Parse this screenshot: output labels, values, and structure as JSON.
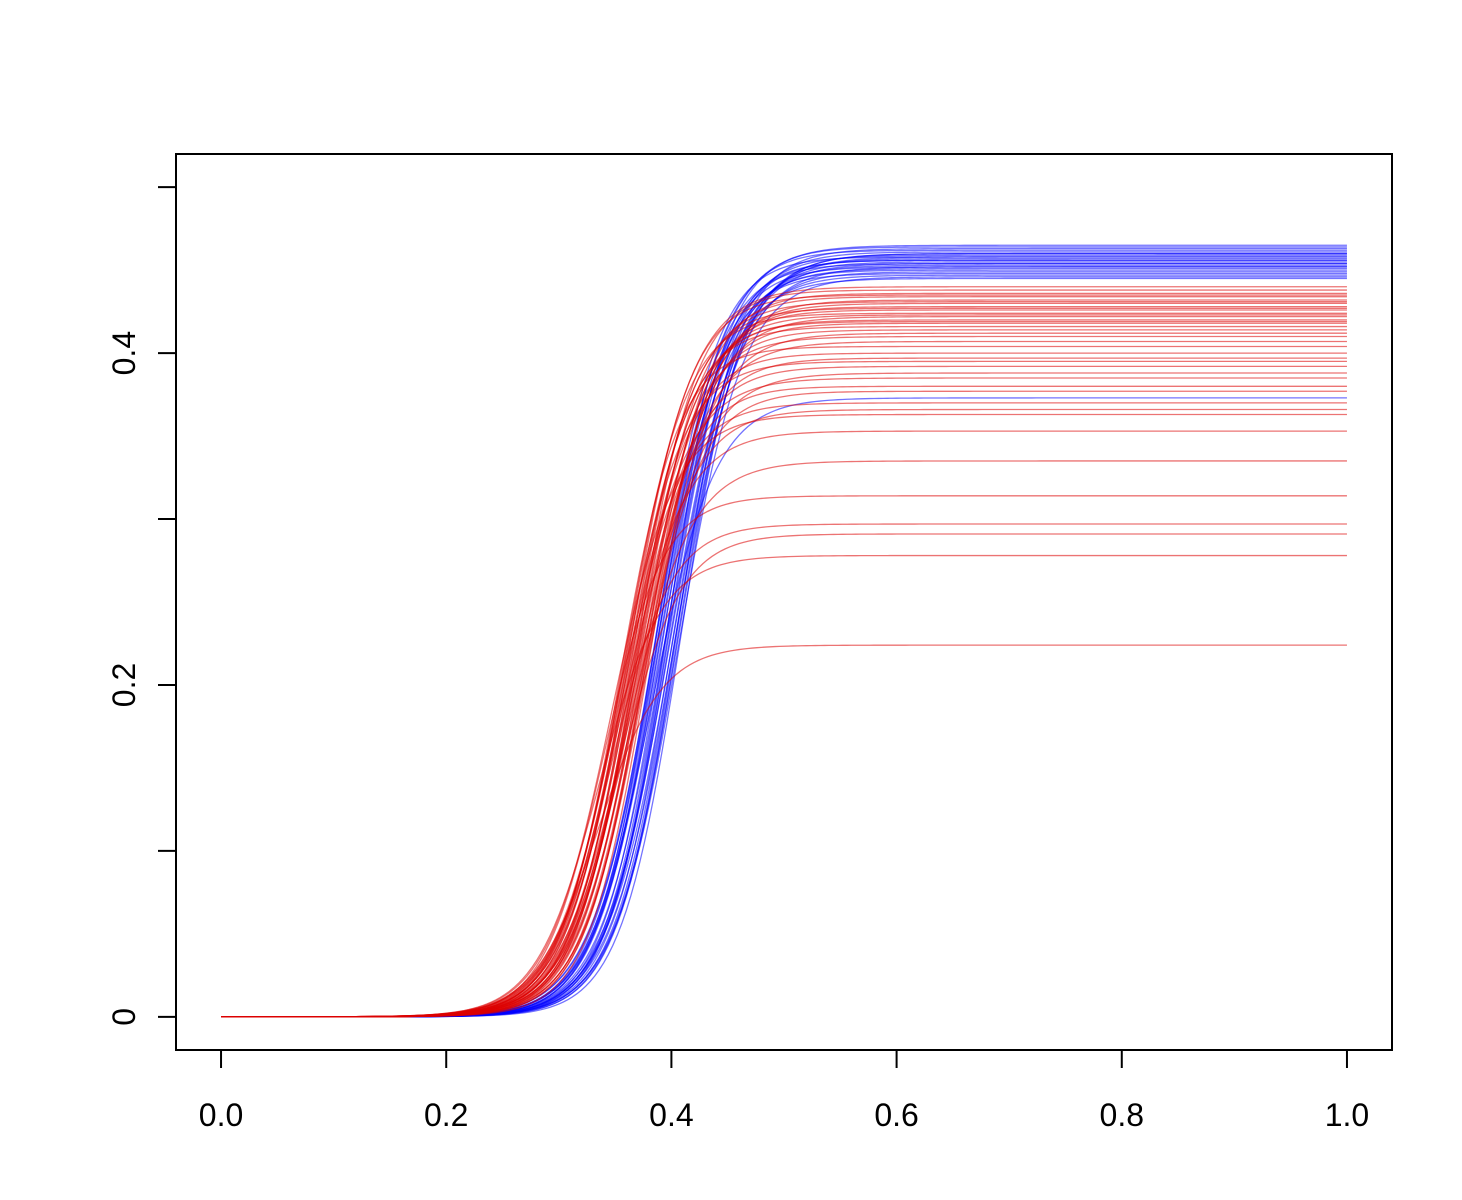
{
  "chart_data": {
    "type": "line",
    "title": "",
    "xlabel": "",
    "ylabel": "",
    "xlim": [
      -0.04,
      1.04
    ],
    "ylim": [
      -0.02,
      0.52
    ],
    "x_ticks": [
      0.0,
      0.2,
      0.4,
      0.6,
      0.8,
      1.0
    ],
    "x_tick_labels": [
      "0.0",
      "0.2",
      "0.4",
      "0.6",
      "0.8",
      "1.0"
    ],
    "y_ticks": [
      0,
      0.1,
      0.2,
      0.3,
      0.4,
      0.5
    ],
    "y_tick_labels": [
      "0",
      "",
      "0.2",
      "",
      "0.4",
      ""
    ],
    "grid": false,
    "legend": "none",
    "colors": {
      "blue": "#0000ff",
      "red": "#dd0000"
    },
    "series": [
      {
        "color": "#0000ff",
        "description": "blue ensemble of sigmoid curves, rise centered near x = 0.39, plateaus between 0.445 and 0.465 (one outlier at 0.373)",
        "midpoint": 0.395,
        "plateaus": [
          0.465,
          0.464,
          0.463,
          0.462,
          0.461,
          0.46,
          0.459,
          0.458,
          0.457,
          0.456,
          0.455,
          0.454,
          0.453,
          0.452,
          0.451,
          0.45,
          0.449,
          0.448,
          0.447,
          0.446,
          0.445,
          0.46,
          0.458,
          0.456,
          0.454,
          0.452,
          0.373
        ]
      },
      {
        "color": "#dd0000",
        "description": "red ensemble of sigmoid curves, rise centered near x = 0.37, plateaus mostly between 0.41 and 0.44 with a spread down to 0.224",
        "midpoint": 0.372,
        "plateaus": [
          0.44,
          0.438,
          0.436,
          0.435,
          0.434,
          0.432,
          0.431,
          0.43,
          0.428,
          0.427,
          0.426,
          0.424,
          0.423,
          0.422,
          0.42,
          0.419,
          0.418,
          0.416,
          0.414,
          0.412,
          0.41,
          0.407,
          0.404,
          0.4,
          0.397,
          0.395,
          0.392,
          0.388,
          0.385,
          0.38,
          0.377,
          0.37,
          0.366,
          0.363,
          0.353,
          0.335,
          0.314,
          0.297,
          0.291,
          0.278,
          0.224
        ]
      }
    ]
  }
}
